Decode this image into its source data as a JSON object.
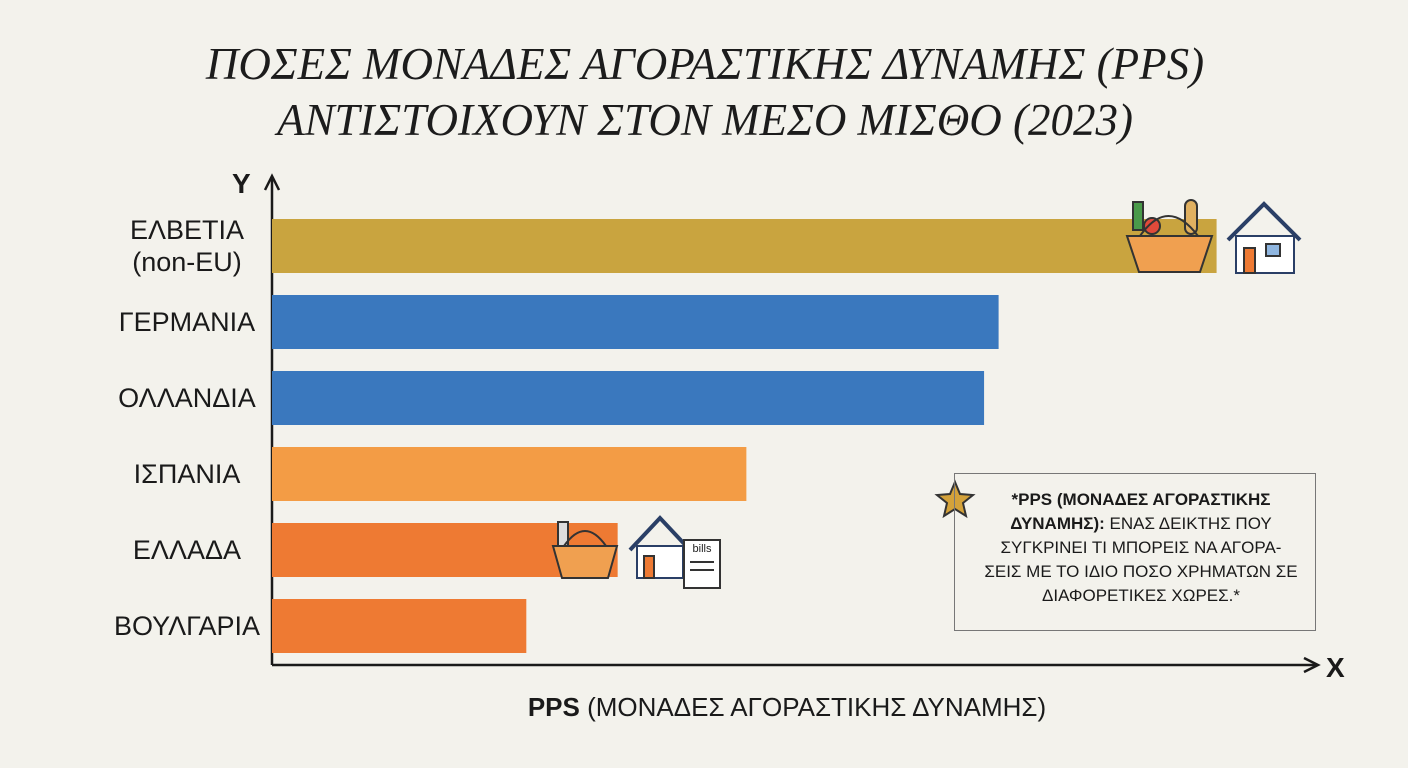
{
  "chart_data": {
    "type": "barh",
    "title": "ΠΟΣΕΣ ΜΟΝΑΔΕΣ ΑΓΟΡΑΣΤΙΚΗΣ ΔΥΝΑΜΗΣ (PPS) ΑΝΤΙΣΤΟΙΧΟΥΝ ΣΤΟΝ ΜΕΣΟ ΜΙΣΘΟ (2023)",
    "y_axis_letter": "Y",
    "x_axis_letter": "X",
    "x_label_bold": "PPS",
    "x_label": "(ΜΟΝΑΔΕΣ ΑΓΟΡΑΣΤΙΚΗΣ ΔΥΝΑΜΗΣ)",
    "categories": [
      "ΕΛΒΕΤΙΑ (non-EU)",
      "ΓΕΡΜΑΝΙΑ",
      "ΟΛΛΑΝΔΙΑ",
      "ΙΣΠΑΝΙΑ",
      "ΕΛΛΑΔΑ",
      "ΒΟΥΛΓΑΡΙΑ"
    ],
    "values": [
      91,
      70,
      68.6,
      45.7,
      33.3,
      24.5
    ],
    "colors": [
      "#c9a43f",
      "#3a78be",
      "#3a78be",
      "#f39c45",
      "#ee7a33",
      "#ee7a33"
    ],
    "xlim": [
      0,
      100
    ],
    "note_bold": "*PPS (ΜΟΝΑΔΕΣ ΑΓΟΡΑΣΤΙΚΗΣ ΔΥΝΑΜΗΣ):",
    "note_text": "ΕΝΑΣ ΔΕΙΚΤΗΣ ΠΟΥ ΣΥΓΚΡΙΝΕΙ ΤΙ ΜΠΟΡΕΙΣ ΝΑ ΑΓΟΡΑ-ΣΕΙΣ ΜΕ ΤΟ ΙΔΙΟ ΠΟΣΟ ΧΡΗΜΑΤΩΝ ΣΕ ΔΙΑΦΟΡΕΤΙΚΕΣ ΧΩΡΕΣ.*",
    "icon_text": "bills"
  }
}
